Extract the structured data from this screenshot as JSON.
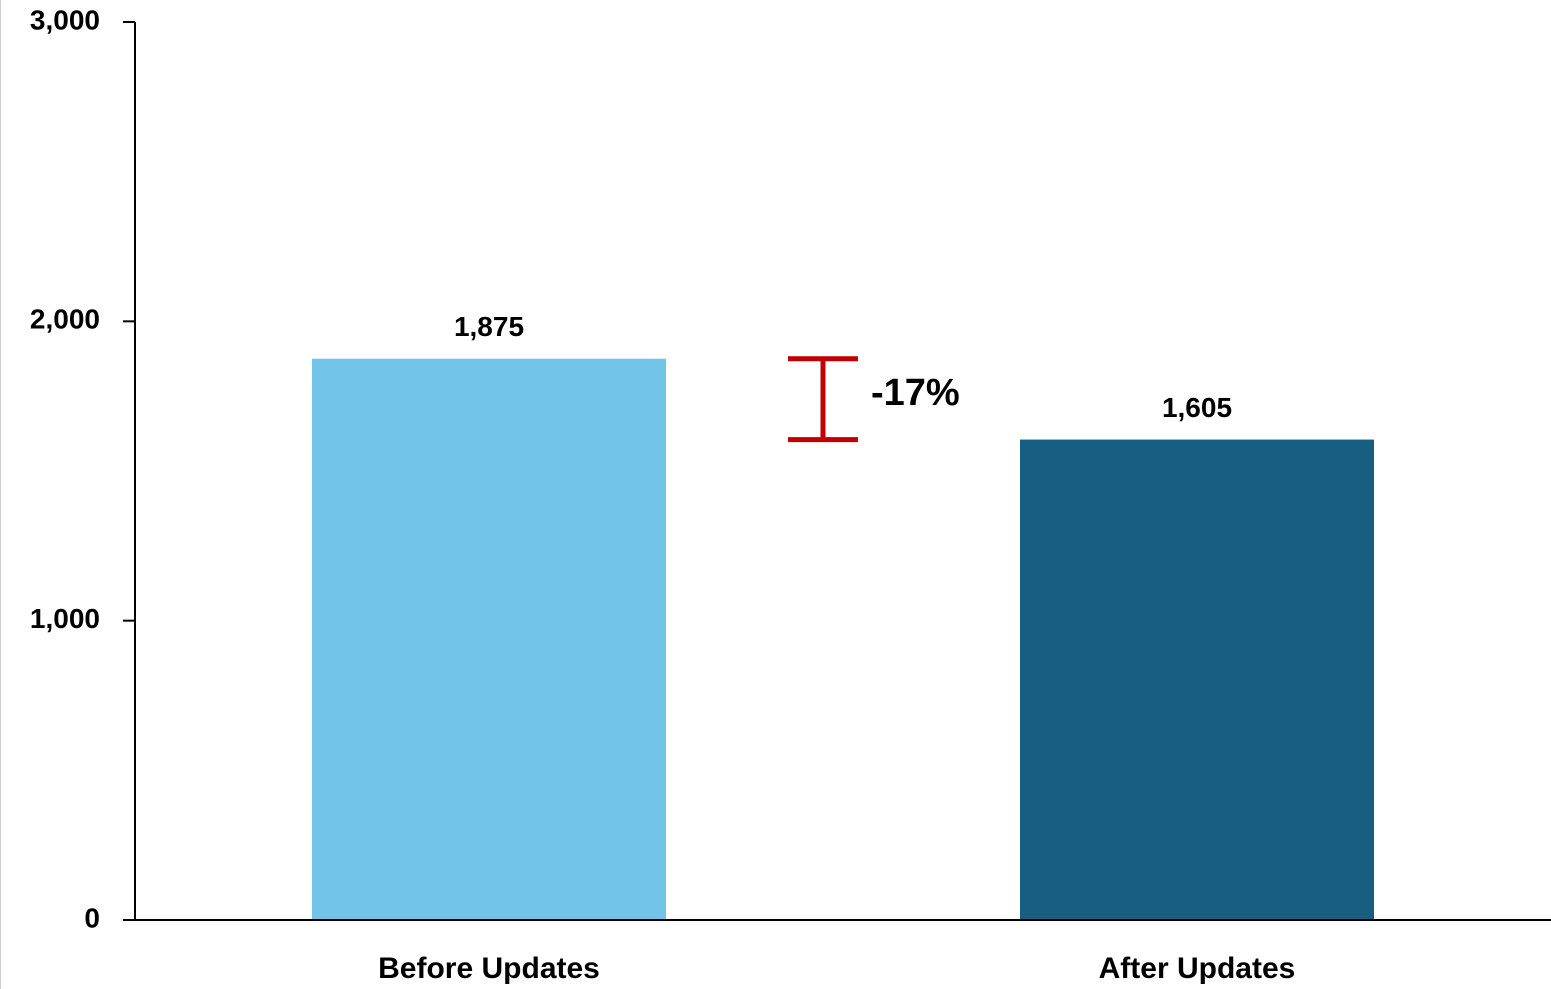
{
  "chart_data": {
    "type": "bar",
    "categories": [
      "Before Updates",
      "After Updates"
    ],
    "values": [
      1875,
      1605
    ],
    "value_labels": [
      "1,875",
      "1,605"
    ],
    "colors": [
      "#72c3e8",
      "#175f82"
    ],
    "ylim": [
      0,
      3000
    ],
    "yticks": [
      0,
      {
        "value": 1000,
        "label": "1,000"
      },
      {
        "value": 2000,
        "label": "2,000"
      },
      {
        "value": 3000,
        "label": "3,000"
      }
    ],
    "annotation": {
      "text": "-17%",
      "color": "#c00000"
    },
    "grid": false
  }
}
